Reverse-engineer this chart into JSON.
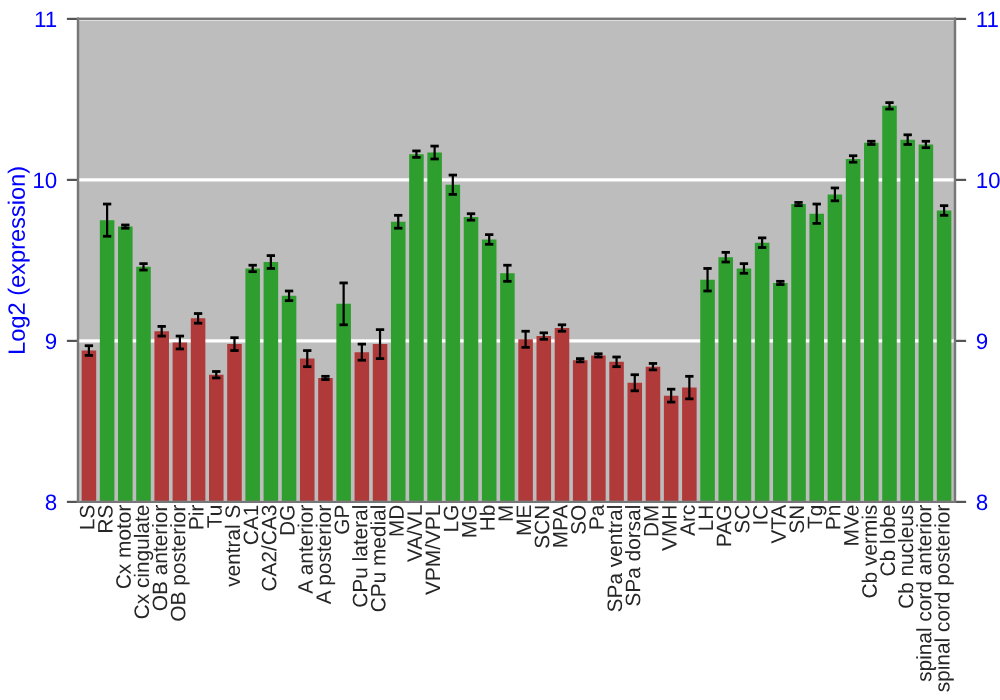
{
  "chart_data": {
    "type": "bar",
    "ylabel": "Log2 (expression)",
    "categories": [
      "LS",
      "RS",
      "Cx motor",
      "Cx cingulate",
      "OB anterior",
      "OB posterior",
      "Pir",
      "Tu",
      "ventral S",
      "CA1",
      "CA2/CA3",
      "DG",
      "A anterior",
      "A posterior",
      "GP",
      "CPu lateral",
      "CPu medial",
      "MD",
      "VA/VL",
      "VPM/VPL",
      "LG",
      "MG",
      "Hb",
      "M",
      "ME",
      "SCN",
      "MPA",
      "SO",
      "Pa",
      "SPa ventral",
      "SPa dorsal",
      "DM",
      "VMH",
      "Arc",
      "LH",
      "PAG",
      "SC",
      "IC",
      "VTA",
      "SN",
      "Tg",
      "Pn",
      "MVe",
      "Cb vermis",
      "Cb lobe",
      "Cb nucleus",
      "spinal cord anterior",
      "spinal cord posterior"
    ],
    "values": [
      8.94,
      9.75,
      9.71,
      9.46,
      9.06,
      8.99,
      9.14,
      8.79,
      8.98,
      9.45,
      9.49,
      9.28,
      8.89,
      8.77,
      9.23,
      8.93,
      8.98,
      9.74,
      10.16,
      10.17,
      9.97,
      9.77,
      9.63,
      9.42,
      9.01,
      9.03,
      9.08,
      8.88,
      8.91,
      8.87,
      8.74,
      8.84,
      8.66,
      8.71,
      9.38,
      9.52,
      9.45,
      9.61,
      9.36,
      9.85,
      9.79,
      9.91,
      10.13,
      10.23,
      10.46,
      10.25,
      10.22,
      9.81
    ],
    "errors": [
      0.03,
      0.1,
      0.01,
      0.02,
      0.03,
      0.04,
      0.03,
      0.02,
      0.04,
      0.02,
      0.04,
      0.03,
      0.05,
      0.01,
      0.13,
      0.05,
      0.09,
      0.04,
      0.02,
      0.04,
      0.06,
      0.02,
      0.03,
      0.05,
      0.05,
      0.02,
      0.02,
      0.01,
      0.01,
      0.03,
      0.05,
      0.02,
      0.04,
      0.07,
      0.07,
      0.03,
      0.03,
      0.03,
      0.01,
      0.01,
      0.06,
      0.04,
      0.02,
      0.01,
      0.02,
      0.03,
      0.02,
      0.03
    ],
    "colors": [
      "#b03a3a",
      "#2e9e2e",
      "#2e9e2e",
      "#2e9e2e",
      "#b03a3a",
      "#b03a3a",
      "#b03a3a",
      "#b03a3a",
      "#b03a3a",
      "#2e9e2e",
      "#2e9e2e",
      "#2e9e2e",
      "#b03a3a",
      "#b03a3a",
      "#2e9e2e",
      "#b03a3a",
      "#b03a3a",
      "#2e9e2e",
      "#2e9e2e",
      "#2e9e2e",
      "#2e9e2e",
      "#2e9e2e",
      "#2e9e2e",
      "#2e9e2e",
      "#b03a3a",
      "#b03a3a",
      "#b03a3a",
      "#b03a3a",
      "#b03a3a",
      "#b03a3a",
      "#b03a3a",
      "#b03a3a",
      "#b03a3a",
      "#b03a3a",
      "#2e9e2e",
      "#2e9e2e",
      "#2e9e2e",
      "#2e9e2e",
      "#2e9e2e",
      "#2e9e2e",
      "#2e9e2e",
      "#2e9e2e",
      "#2e9e2e",
      "#2e9e2e",
      "#2e9e2e",
      "#2e9e2e",
      "#2e9e2e",
      "#2e9e2e"
    ],
    "ylim": [
      8,
      11
    ],
    "yticks": [
      8,
      9,
      10,
      11
    ],
    "y2lim": [
      8,
      11
    ],
    "y2ticks": [
      8,
      9,
      10,
      11
    ],
    "grid": "y"
  }
}
